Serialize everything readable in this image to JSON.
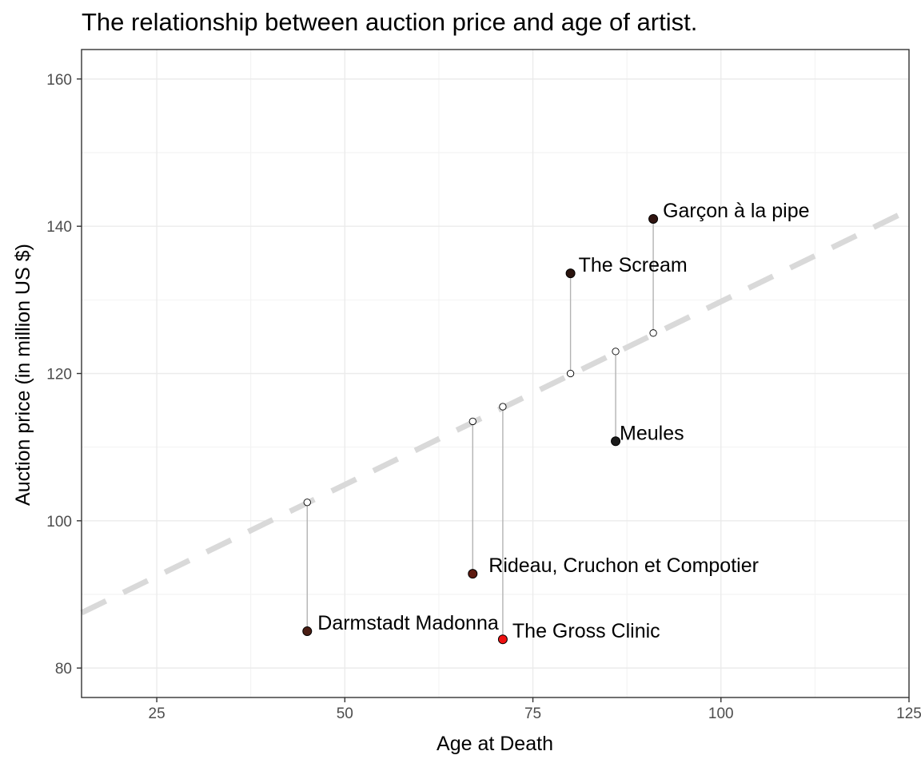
{
  "chart_data": {
    "type": "scatter",
    "title": "The relationship between auction price and age of artist.",
    "xlabel": "Age at Death",
    "ylabel": "Auction price (in million US $)",
    "xlim": [
      15,
      125
    ],
    "ylim": [
      76,
      164
    ],
    "x_ticks": [
      25,
      50,
      75,
      100,
      125
    ],
    "y_ticks": [
      80,
      100,
      120,
      140,
      160
    ],
    "grid": true,
    "trend_line": {
      "style": "dashed",
      "color": "#d9d9d9",
      "x": [
        15,
        125
      ],
      "y": [
        87.5,
        142.2
      ]
    },
    "points": [
      {
        "label": "Darmstadt Madonna",
        "x": 45,
        "y": 85.0,
        "fitted": 102.5,
        "color": "#4a1e14"
      },
      {
        "label": "Rideau, Cruchon et Compotier",
        "x": 67,
        "y": 92.8,
        "fitted": 113.5,
        "color": "#5e1a10"
      },
      {
        "label": "The Gross Clinic",
        "x": 71,
        "y": 83.9,
        "fitted": 115.5,
        "color": "#ee1111"
      },
      {
        "label": "The Scream",
        "x": 80,
        "y": 133.6,
        "fitted": 120.0,
        "color": "#2a140e"
      },
      {
        "label": "Meules",
        "x": 86,
        "y": 110.8,
        "fitted": 123.0,
        "color": "#1a1a1a"
      },
      {
        "label": "Garçon à la pipe",
        "x": 91,
        "y": 141.0,
        "fitted": 125.5,
        "color": "#301410"
      }
    ]
  }
}
